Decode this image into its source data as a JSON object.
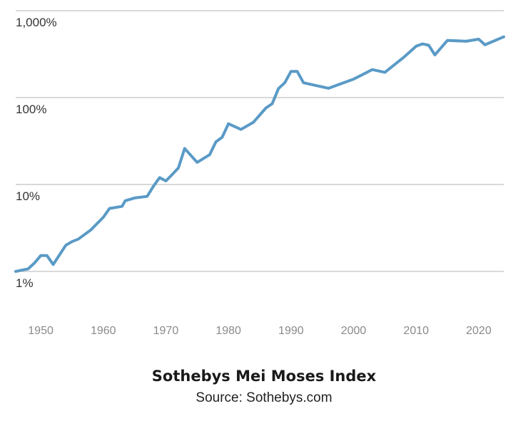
{
  "chart_data": {
    "type": "line",
    "title": "Sothebys Mei Moses Index",
    "subtitle": "Source: Sothebys.com",
    "xlabel": "",
    "ylabel": "",
    "y_scale": "log",
    "xlim": [
      1946,
      2024
    ],
    "ylim": [
      1,
      1000
    ],
    "x_ticks": [
      1950,
      1960,
      1970,
      1980,
      1990,
      2000,
      2010,
      2020
    ],
    "x_tick_labels": [
      "1950",
      "1960",
      "1970",
      "1980",
      "1990",
      "2000",
      "2010",
      "2020"
    ],
    "y_ticks": [
      1,
      10,
      100,
      1000
    ],
    "y_tick_labels": [
      "1%",
      "10%",
      "100%",
      "1,000%"
    ],
    "grid": true,
    "series": [
      {
        "name": "Sothebys Mei Moses Index",
        "color": "#5a9ac6",
        "x": [
          1946,
          1948,
          1949,
          1950,
          1951,
          1952,
          1954,
          1955,
          1956,
          1958,
          1960,
          1961,
          1963,
          1963.5,
          1965,
          1967,
          1968,
          1969,
          1970,
          1971,
          1972,
          1973,
          1975,
          1977,
          1978,
          1979,
          1980,
          1982,
          1984,
          1986,
          1987,
          1988,
          1989,
          1990,
          1991,
          1992,
          1996,
          2000,
          2003,
          2005,
          2008,
          2010,
          2011,
          2012,
          2013,
          2015,
          2018,
          2020,
          2021,
          2024
        ],
        "y": [
          1.0,
          1.07,
          1.25,
          1.52,
          1.52,
          1.2,
          2.0,
          2.2,
          2.35,
          3.0,
          4.2,
          5.3,
          5.6,
          6.5,
          7.0,
          7.3,
          9.5,
          12.0,
          11.0,
          13.0,
          15.5,
          26.0,
          18.0,
          22.0,
          31.0,
          35.0,
          50.0,
          43.0,
          52.0,
          76.0,
          85.0,
          127.0,
          148.0,
          200.0,
          200.0,
          148.0,
          128.0,
          163.0,
          210.0,
          195.0,
          290.0,
          390.0,
          415.0,
          400.0,
          310.0,
          455.0,
          445.0,
          470.0,
          405.0,
          500.0
        ]
      }
    ]
  }
}
